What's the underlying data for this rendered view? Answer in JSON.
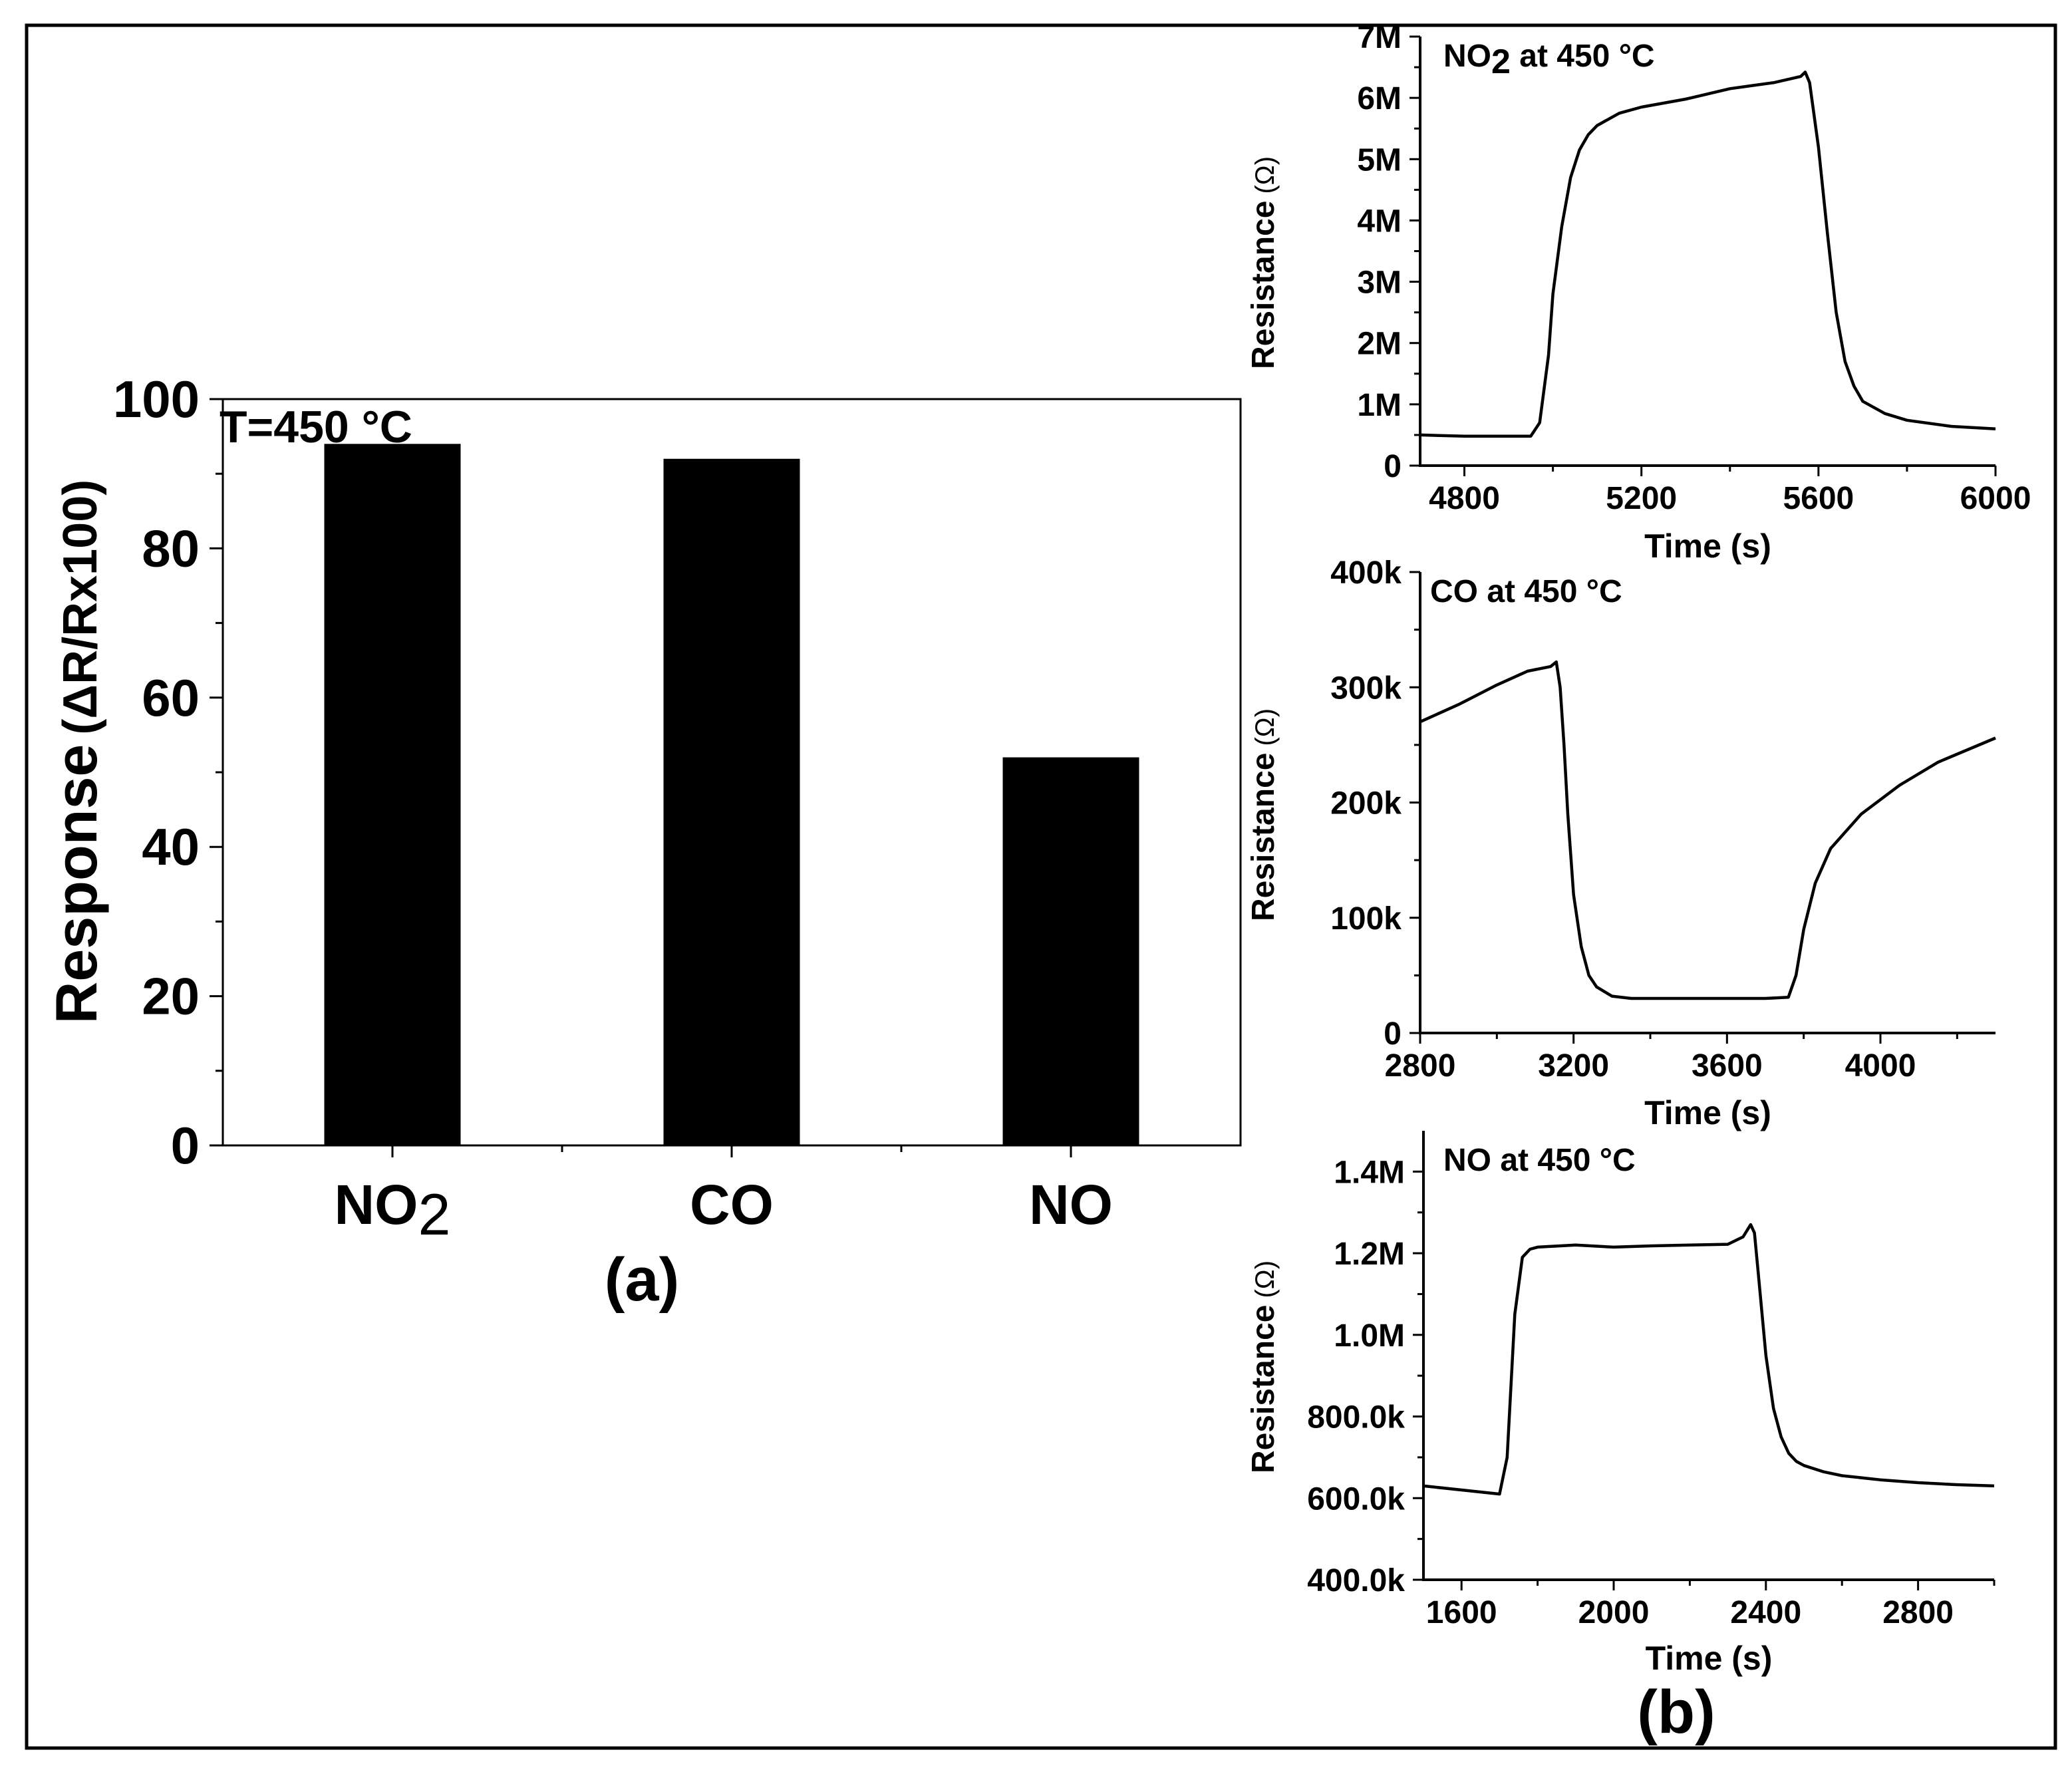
{
  "figure": {
    "panel_a_label": "(a)",
    "panel_b_label": "(b)"
  },
  "chart_data": [
    {
      "id": "a",
      "type": "bar",
      "title": "T=450 °C",
      "xlabel": "",
      "ylabel": "Response (ΔR/Rx100)",
      "ylabel_main": "Response",
      "ylabel_paren": "(ΔR/Rx100)",
      "categories": [
        "NO2",
        "CO",
        "NO"
      ],
      "category_labels": [
        {
          "main": "NO",
          "sub": "2"
        },
        {
          "main": "CO",
          "sub": ""
        },
        {
          "main": "NO",
          "sub": ""
        }
      ],
      "values": [
        94,
        92,
        52
      ],
      "ylim": [
        0,
        100
      ],
      "yticks": [
        0,
        20,
        40,
        60,
        80,
        100
      ],
      "ytick_labels": [
        "0",
        "20",
        "40",
        "60",
        "80",
        "100"
      ],
      "grid": false
    },
    {
      "id": "b1",
      "type": "line",
      "title": "NO2 at 450 °C",
      "title_parts": {
        "main": "NO",
        "sub": "2",
        "rest": " at 450 °C"
      },
      "xlabel": "Time (s)",
      "ylabel": "Resistance (Ω)",
      "ylabel_main": "Resistance",
      "ylabel_paren": "(Ω)",
      "xlim": [
        4700,
        6000
      ],
      "ylim": [
        0,
        7000000
      ],
      "xticks": [
        4800,
        5200,
        5600,
        6000
      ],
      "xtick_labels": [
        "4800",
        "5200",
        "5600",
        "6000"
      ],
      "yticks": [
        0,
        1000000,
        2000000,
        3000000,
        4000000,
        5000000,
        6000000,
        7000000
      ],
      "ytick_labels": [
        "0",
        "1M",
        "2M",
        "3M",
        "4M",
        "5M",
        "6M",
        "7M"
      ],
      "x": [
        4700,
        4800,
        4900,
        4950,
        4970,
        4990,
        5000,
        5020,
        5040,
        5060,
        5080,
        5100,
        5150,
        5200,
        5300,
        5400,
        5500,
        5560,
        5570,
        5580,
        5600,
        5620,
        5640,
        5660,
        5680,
        5700,
        5750,
        5800,
        5900,
        6000
      ],
      "y": [
        500000,
        480000,
        480000,
        480000,
        700000,
        1800000,
        2800000,
        3900000,
        4700000,
        5150000,
        5400000,
        5550000,
        5750000,
        5850000,
        5980000,
        6150000,
        6250000,
        6350000,
        6420000,
        6250000,
        5200000,
        3800000,
        2500000,
        1700000,
        1300000,
        1050000,
        850000,
        740000,
        640000,
        600000
      ],
      "grid": false
    },
    {
      "id": "b2",
      "type": "line",
      "title": "CO at 450 °C",
      "title_parts": {
        "main": "CO at 450 °C",
        "sub": "",
        "rest": ""
      },
      "xlabel": "Time (s)",
      "ylabel": "Resistance (Ω)",
      "ylabel_main": "Resistance",
      "ylabel_paren": "(Ω)",
      "xlim": [
        2800,
        4300
      ],
      "ylim": [
        0,
        400000
      ],
      "xticks": [
        2800,
        3200,
        3600,
        4000
      ],
      "xtick_labels": [
        "2800",
        "3200",
        "3600",
        "4000"
      ],
      "yticks": [
        0,
        100000,
        200000,
        300000,
        400000
      ],
      "ytick_labels": [
        "0",
        "100k",
        "200k",
        "300k",
        "400k"
      ],
      "x": [
        2800,
        2900,
        3000,
        3080,
        3140,
        3155,
        3165,
        3175,
        3185,
        3200,
        3220,
        3240,
        3260,
        3300,
        3350,
        3400,
        3500,
        3600,
        3700,
        3760,
        3780,
        3800,
        3830,
        3870,
        3950,
        4050,
        4150,
        4300
      ],
      "y": [
        270000,
        285000,
        302000,
        314000,
        318000,
        322000,
        300000,
        250000,
        190000,
        120000,
        75000,
        50000,
        40000,
        32000,
        30000,
        30000,
        30000,
        30000,
        30000,
        31000,
        50000,
        90000,
        130000,
        160000,
        190000,
        215000,
        235000,
        256000
      ],
      "grid": false
    },
    {
      "id": "b3",
      "type": "line",
      "title": "NO at 450 °C",
      "title_parts": {
        "main": "NO at 450 °C",
        "sub": "",
        "rest": ""
      },
      "xlabel": "Time (s)",
      "ylabel": "Resistance (Ω)",
      "ylabel_main": "Resistance",
      "ylabel_paren": "(Ω)",
      "xlim": [
        1500,
        3000
      ],
      "ylim": [
        400000,
        1500000
      ],
      "xticks": [
        1600,
        2000,
        2400,
        2800
      ],
      "xtick_labels": [
        "1600",
        "2000",
        "2400",
        "2800"
      ],
      "yticks": [
        400000,
        600000,
        800000,
        1000000,
        1200000,
        1400000
      ],
      "ytick_labels": [
        "400.0k",
        "600.0k",
        "800.0k",
        "1.0M",
        "1.2M",
        "1.4M"
      ],
      "x": [
        1500,
        1600,
        1700,
        1720,
        1740,
        1760,
        1780,
        1800,
        1900,
        2000,
        2100,
        2200,
        2300,
        2340,
        2360,
        2370,
        2380,
        2400,
        2420,
        2440,
        2460,
        2480,
        2500,
        2550,
        2600,
        2700,
        2800,
        2900,
        3000
      ],
      "y": [
        630000,
        620000,
        610000,
        700000,
        1050000,
        1190000,
        1210000,
        1215000,
        1220000,
        1215000,
        1218000,
        1220000,
        1222000,
        1240000,
        1270000,
        1250000,
        1150000,
        950000,
        820000,
        750000,
        710000,
        690000,
        680000,
        665000,
        655000,
        645000,
        638000,
        633000,
        630000
      ],
      "grid": false
    }
  ]
}
